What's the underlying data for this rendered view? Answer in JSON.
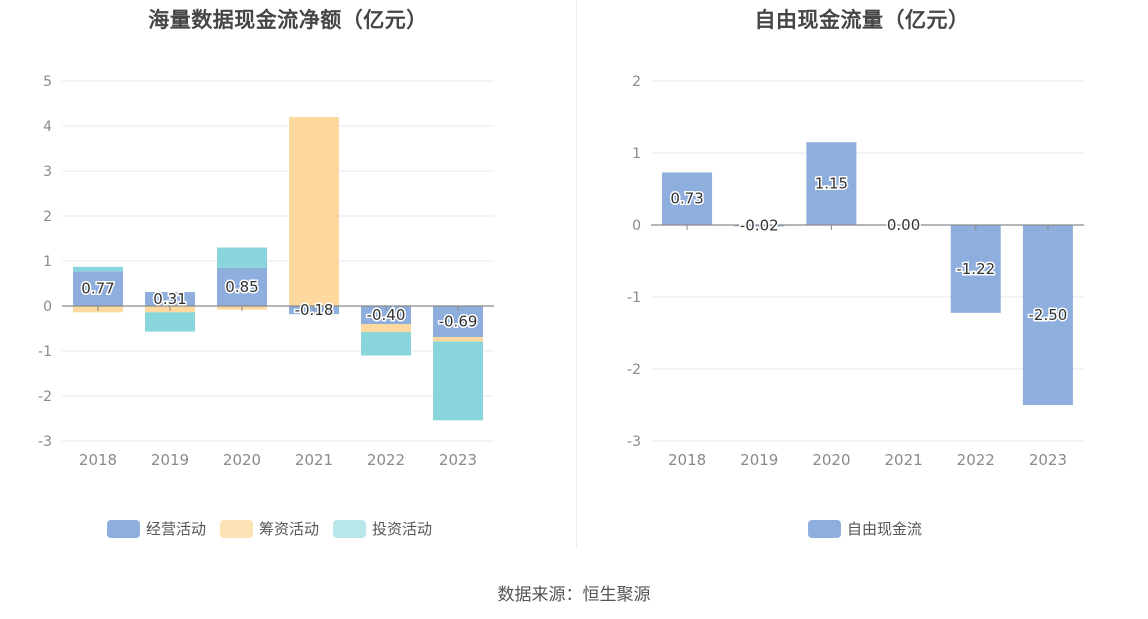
{
  "colors": {
    "operating": "#8eaedd",
    "financing": "#fdd9a0",
    "investing": "#88d5db",
    "free_cf": "#8eaedd"
  },
  "source": "数据来源：恒生聚源",
  "chart_data": [
    {
      "type": "bar",
      "stacked": true,
      "title": "海量数据现金流净额（亿元）",
      "categories": [
        "2018",
        "2019",
        "2020",
        "2021",
        "2022",
        "2023"
      ],
      "ylim": [
        -3,
        5
      ],
      "yticks": [
        5,
        4,
        3,
        2,
        1,
        0,
        -1,
        -2,
        -3
      ],
      "series": [
        {
          "name": "经营活动",
          "key": "operating",
          "values": [
            0.77,
            0.31,
            0.85,
            -0.18,
            -0.4,
            -0.69
          ]
        },
        {
          "name": "筹资活动",
          "key": "financing",
          "values": [
            -0.14,
            -0.14,
            -0.08,
            4.2,
            -0.18,
            -0.1
          ]
        },
        {
          "name": "投资活动",
          "key": "investing",
          "values": [
            0.1,
            -0.43,
            0.45,
            0.0,
            -0.52,
            -1.75
          ]
        }
      ],
      "data_labels": [
        "0.77",
        "0.31",
        "0.85",
        "-0.18",
        "-0.40",
        "-0.69"
      ],
      "legend": [
        "经营活动",
        "筹资活动",
        "投资活动"
      ]
    },
    {
      "type": "bar",
      "title": "自由现金流量（亿元）",
      "categories": [
        "2018",
        "2019",
        "2020",
        "2021",
        "2022",
        "2023"
      ],
      "ylim": [
        -3,
        2
      ],
      "yticks": [
        2,
        1,
        0,
        -1,
        -2,
        -3
      ],
      "series": [
        {
          "name": "自由现金流",
          "key": "free_cf",
          "values": [
            0.73,
            -0.02,
            1.15,
            0.0,
            -1.22,
            -2.5
          ]
        }
      ],
      "data_labels": [
        "0.73",
        "-0.02",
        "1.15",
        "0.00",
        "-1.22",
        "-2.50"
      ],
      "legend": [
        "自由现金流"
      ]
    }
  ]
}
